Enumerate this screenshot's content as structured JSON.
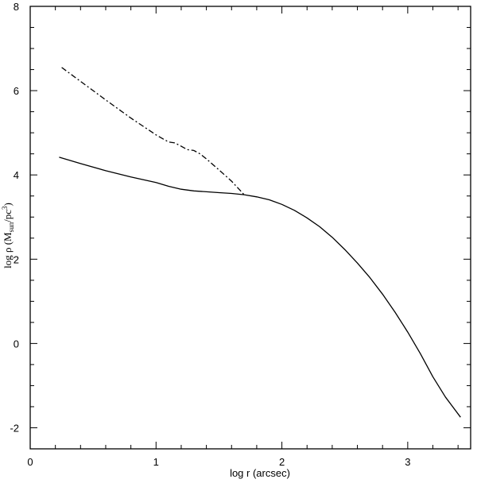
{
  "chart_data": {
    "type": "line",
    "xlabel": "log r (arcsec)",
    "ylabel": {
      "prefix": "log ρ  (M",
      "subscript": "sun",
      "middle": "/pc",
      "superscript": "3",
      "suffix": ")"
    },
    "xlim": [
      0,
      3.5
    ],
    "ylim": [
      -2.5,
      8
    ],
    "xticks": [
      0,
      1,
      2,
      3
    ],
    "yticks": [
      -2,
      0,
      2,
      4,
      6,
      8
    ],
    "xtick_labels": [
      "0",
      "1",
      "2",
      "3"
    ],
    "ytick_labels": [
      "-2",
      "0",
      "2",
      "4",
      "6",
      "8"
    ],
    "grid": false,
    "series": [
      {
        "style": "solid",
        "color": "#000000",
        "x": [
          0.23,
          0.4,
          0.6,
          0.8,
          1.0,
          1.1,
          1.2,
          1.3,
          1.4,
          1.5,
          1.6,
          1.7,
          1.8,
          1.9,
          2.0,
          2.1,
          2.2,
          2.3,
          2.4,
          2.5,
          2.6,
          2.7,
          2.8,
          2.9,
          3.0,
          3.1,
          3.2,
          3.3,
          3.42
        ],
        "y": [
          4.42,
          4.27,
          4.1,
          3.95,
          3.82,
          3.73,
          3.66,
          3.62,
          3.6,
          3.58,
          3.56,
          3.53,
          3.48,
          3.41,
          3.3,
          3.16,
          2.98,
          2.77,
          2.52,
          2.23,
          1.91,
          1.56,
          1.17,
          0.74,
          0.27,
          -0.24,
          -0.79,
          -1.27,
          -1.75
        ]
      },
      {
        "style": "dash-dot",
        "color": "#000000",
        "x": [
          0.25,
          0.4,
          0.6,
          0.8,
          1.0,
          1.1,
          1.15,
          1.2,
          1.25,
          1.3,
          1.35,
          1.4,
          1.5,
          1.6,
          1.7
        ],
        "y": [
          6.55,
          6.22,
          5.78,
          5.35,
          4.95,
          4.78,
          4.76,
          4.68,
          4.6,
          4.58,
          4.5,
          4.38,
          4.12,
          3.85,
          3.53
        ]
      }
    ]
  }
}
